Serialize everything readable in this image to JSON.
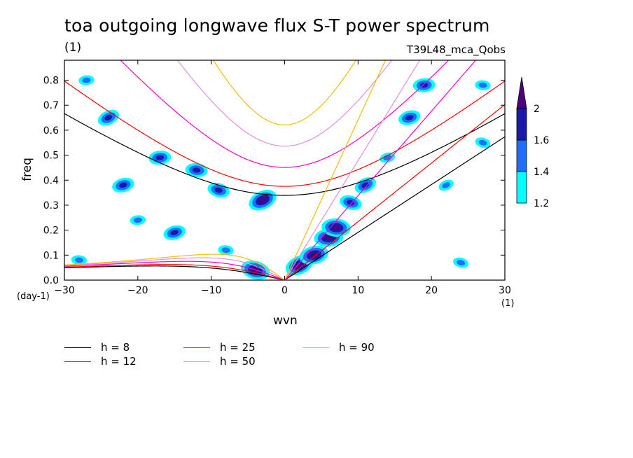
{
  "title": "toa outgoing longwave flux S-T power spectrum",
  "units_label": "(1)",
  "experiment": "T39L48_mca_Qobs",
  "y_unit_label": "(day-1)",
  "x_unit_label": "(1)",
  "colorbar": {
    "levels": [
      "1.2",
      "1.4",
      "1.6",
      "2"
    ],
    "colors": [
      "#00ffff",
      "#1e6fff",
      "#1a1aa8",
      "#4b0082"
    ]
  },
  "chart_data": {
    "type": "contour",
    "xlabel": "wvn",
    "ylabel": "freq",
    "xlim": [
      -30,
      30
    ],
    "ylim": [
      0,
      0.88
    ],
    "xticks": [
      -30,
      -20,
      -10,
      0,
      10,
      20,
      30
    ],
    "yticks": [
      0.0,
      0.1,
      0.2,
      0.3,
      0.4,
      0.5,
      0.6,
      0.7,
      0.8
    ],
    "dispersion_curves": [
      {
        "name": "h =  8",
        "color": "#000000"
      },
      {
        "name": "h = 12",
        "color": "#ff0000"
      },
      {
        "name": "h = 25",
        "color": "#ff00cc"
      },
      {
        "name": "h = 50",
        "color": "#e38fe0"
      },
      {
        "name": "h = 90",
        "color": "#f0c000"
      }
    ],
    "power_patches": [
      {
        "x": -24,
        "y": 0.65,
        "level": 2
      },
      {
        "x": -22,
        "y": 0.38,
        "level": 2
      },
      {
        "x": -17,
        "y": 0.49,
        "level": 2
      },
      {
        "x": -12,
        "y": 0.44,
        "level": 2
      },
      {
        "x": -9,
        "y": 0.36,
        "level": 2
      },
      {
        "x": -3,
        "y": 0.32,
        "level": 3
      },
      {
        "x": -15,
        "y": 0.19,
        "level": 2
      },
      {
        "x": -20,
        "y": 0.24,
        "level": 1
      },
      {
        "x": -28,
        "y": 0.08,
        "level": 1
      },
      {
        "x": -4,
        "y": 0.04,
        "level": 3
      },
      {
        "x": 2,
        "y": 0.06,
        "level": 3
      },
      {
        "x": 4,
        "y": 0.1,
        "level": 3
      },
      {
        "x": 6,
        "y": 0.17,
        "level": 3
      },
      {
        "x": 7,
        "y": 0.21,
        "level": 3
      },
      {
        "x": 9,
        "y": 0.31,
        "level": 2
      },
      {
        "x": 11,
        "y": 0.38,
        "level": 2
      },
      {
        "x": 17,
        "y": 0.65,
        "level": 2
      },
      {
        "x": 19,
        "y": 0.78,
        "level": 2
      },
      {
        "x": 27,
        "y": 0.78,
        "level": 1
      },
      {
        "x": 27,
        "y": 0.55,
        "level": 1
      },
      {
        "x": 22,
        "y": 0.38,
        "level": 1
      },
      {
        "x": 14,
        "y": 0.49,
        "level": 1
      },
      {
        "x": -27,
        "y": 0.8,
        "level": 1
      },
      {
        "x": -8,
        "y": 0.12,
        "level": 1
      },
      {
        "x": 24,
        "y": 0.07,
        "level": 1
      }
    ]
  }
}
